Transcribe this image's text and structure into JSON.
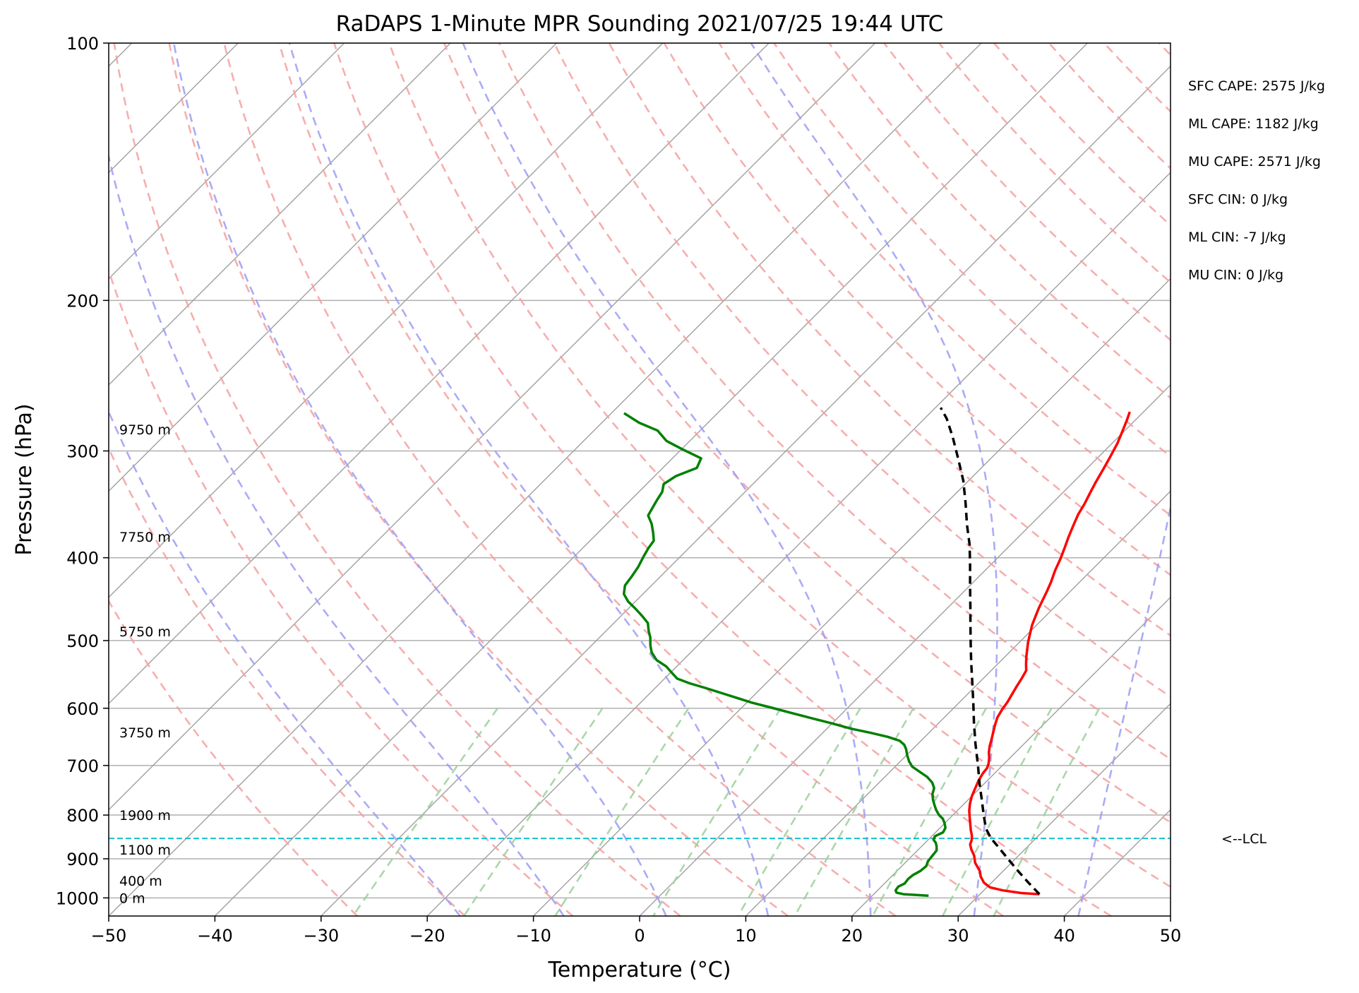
{
  "chart_data": {
    "type": "line",
    "title": "RaDAPS 1-Minute MPR Sounding 2021/07/25 19:44 UTC",
    "xlabel": "Temperature (°C)",
    "ylabel": "Pressure (hPa)",
    "xlim": [
      -50,
      50
    ],
    "ylim": [
      1050,
      100
    ],
    "y_scale": "log",
    "skew_t": true,
    "grid": true,
    "x_ticks": [
      -50,
      -40,
      -30,
      -20,
      -10,
      0,
      10,
      20,
      30,
      40,
      50
    ],
    "x_tick_labels": [
      "−50",
      "−40",
      "−30",
      "−20",
      "−10",
      "0",
      "10",
      "20",
      "30",
      "40",
      "50"
    ],
    "y_ticks": [
      100,
      200,
      300,
      400,
      500,
      600,
      700,
      800,
      900,
      1000
    ],
    "y_tick_labels": [
      "100",
      "200",
      "300",
      "400",
      "500",
      "600",
      "700",
      "800",
      "900",
      "1000"
    ],
    "series": [
      {
        "color": "#ff0000",
        "points": [
          [
            35.6,
            990
          ],
          [
            33.8,
            987
          ],
          [
            31.8,
            980
          ],
          [
            30.3,
            972
          ],
          [
            29.3,
            960
          ],
          [
            28.4,
            944
          ],
          [
            27.8,
            930
          ],
          [
            26.6,
            910
          ],
          [
            25.8,
            892
          ],
          [
            25.0,
            878
          ],
          [
            24.4,
            866
          ],
          [
            24.1,
            855
          ],
          [
            23.7,
            845
          ],
          [
            23.1,
            833
          ],
          [
            22.5,
            820
          ],
          [
            21.8,
            805
          ],
          [
            21.1,
            790
          ],
          [
            20.5,
            775
          ],
          [
            20.0,
            760
          ],
          [
            19.6,
            745
          ],
          [
            19.2,
            730
          ],
          [
            18.9,
            715
          ],
          [
            18.8,
            705
          ],
          [
            18.5,
            696
          ],
          [
            18.0,
            685
          ],
          [
            17.5,
            676
          ],
          [
            17.0,
            665
          ],
          [
            16.5,
            652
          ],
          [
            16.0,
            640
          ],
          [
            15.5,
            628
          ],
          [
            15.0,
            615
          ],
          [
            14.7,
            602
          ],
          [
            14.5,
            590
          ],
          [
            14.2,
            578
          ],
          [
            13.9,
            566
          ],
          [
            13.6,
            553
          ],
          [
            13.3,
            542
          ],
          [
            12.7,
            533
          ],
          [
            12.0,
            522
          ],
          [
            11.4,
            512
          ],
          [
            10.8,
            502
          ],
          [
            10.2,
            491
          ],
          [
            9.6,
            480
          ],
          [
            9.1,
            469
          ],
          [
            8.6,
            458
          ],
          [
            8.2,
            448
          ],
          [
            7.8,
            438
          ],
          [
            7.3,
            427
          ],
          [
            6.6,
            414
          ],
          [
            6.0,
            401
          ],
          [
            5.4,
            390
          ],
          [
            4.7,
            378
          ],
          [
            4.1,
            367
          ],
          [
            3.5,
            356
          ],
          [
            3.1,
            346
          ],
          [
            2.6,
            336
          ],
          [
            2.1,
            326
          ],
          [
            1.6,
            315
          ],
          [
            1.1,
            305
          ],
          [
            0.5,
            294
          ],
          [
            -0.2,
            284
          ],
          [
            -0.8,
            276
          ],
          [
            -1.3,
            270
          ]
        ]
      },
      {
        "color": "#008000",
        "points": [
          [
            25.3,
            994
          ],
          [
            24.0,
            992
          ],
          [
            22.8,
            990
          ],
          [
            22.0,
            986
          ],
          [
            21.7,
            980
          ],
          [
            21.6,
            970
          ],
          [
            21.9,
            962
          ],
          [
            21.8,
            950
          ],
          [
            21.9,
            940
          ],
          [
            22.2,
            930
          ],
          [
            22.3,
            918
          ],
          [
            22.0,
            906
          ],
          [
            21.9,
            893
          ],
          [
            21.8,
            880
          ],
          [
            21.4,
            870
          ],
          [
            21.0,
            862
          ],
          [
            20.5,
            855
          ],
          [
            20.3,
            847
          ],
          [
            20.7,
            838
          ],
          [
            20.5,
            828
          ],
          [
            20.0,
            818
          ],
          [
            19.4,
            808
          ],
          [
            18.7,
            800
          ],
          [
            18.0,
            790
          ],
          [
            17.4,
            780
          ],
          [
            16.7,
            768
          ],
          [
            16.1,
            756
          ],
          [
            15.7,
            744
          ],
          [
            15.0,
            733
          ],
          [
            14.0,
            722
          ],
          [
            12.8,
            712
          ],
          [
            11.6,
            702
          ],
          [
            10.8,
            692
          ],
          [
            10.0,
            680
          ],
          [
            9.4,
            670
          ],
          [
            8.8,
            662
          ],
          [
            8.0,
            655
          ],
          [
            6.5,
            648
          ],
          [
            4.5,
            641
          ],
          [
            2.3,
            634
          ],
          [
            0.0,
            625
          ],
          [
            -2.5,
            616
          ],
          [
            -5.0,
            607
          ],
          [
            -7.2,
            599
          ],
          [
            -9.5,
            591
          ],
          [
            -11.5,
            583
          ],
          [
            -13.5,
            575
          ],
          [
            -15.3,
            568
          ],
          [
            -17.2,
            561
          ],
          [
            -18.8,
            554
          ],
          [
            -19.9,
            545
          ],
          [
            -21.0,
            536
          ],
          [
            -22.5,
            527
          ],
          [
            -23.7,
            516
          ],
          [
            -24.5,
            506
          ],
          [
            -25.2,
            496
          ],
          [
            -26.0,
            487
          ],
          [
            -26.8,
            477
          ],
          [
            -28.0,
            468
          ],
          [
            -29.3,
            459
          ],
          [
            -30.7,
            450
          ],
          [
            -31.8,
            441
          ],
          [
            -32.5,
            431
          ],
          [
            -32.7,
            421
          ],
          [
            -33.0,
            410
          ],
          [
            -33.5,
            398
          ],
          [
            -33.8,
            390
          ],
          [
            -34.0,
            382
          ],
          [
            -34.8,
            374
          ],
          [
            -35.8,
            365
          ],
          [
            -36.9,
            357
          ],
          [
            -37.2,
            350
          ],
          [
            -37.5,
            343
          ],
          [
            -37.8,
            335
          ],
          [
            -38.4,
            328
          ],
          [
            -38.0,
            321
          ],
          [
            -36.8,
            314
          ],
          [
            -37.3,
            306
          ],
          [
            -39.8,
            299
          ],
          [
            -42.2,
            292
          ],
          [
            -44.0,
            284
          ],
          [
            -46.5,
            278
          ],
          [
            -48.8,
            271
          ]
        ]
      },
      {
        "name": "",
        "color": "#000000",
        "dashed": true,
        "points": [
          [
            35.6,
            990
          ],
          [
            33.5,
            960
          ],
          [
            31.4,
            930
          ],
          [
            29.3,
            900
          ],
          [
            27.3,
            872
          ],
          [
            25.8,
            852
          ],
          [
            24.4,
            830
          ],
          [
            22.9,
            800
          ],
          [
            21.4,
            770
          ],
          [
            19.6,
            736
          ],
          [
            17.7,
            700
          ],
          [
            15.4,
            660
          ],
          [
            13.3,
            624
          ],
          [
            11.4,
            592
          ],
          [
            9.3,
            559
          ],
          [
            7.4,
            531
          ],
          [
            5.6,
            505
          ],
          [
            3.8,
            480
          ],
          [
            2.0,
            456
          ],
          [
            0.0,
            431
          ],
          [
            -2.0,
            407
          ],
          [
            -3.9,
            386
          ],
          [
            -6.0,
            366
          ],
          [
            -8.2,
            345
          ],
          [
            -10.5,
            325
          ],
          [
            -13.1,
            306
          ],
          [
            -15.6,
            289
          ],
          [
            -17.9,
            275
          ],
          [
            -19.5,
            267
          ]
        ]
      }
    ],
    "lcl_hpa": 852,
    "lcl_label": "<--LCL",
    "height_labels": [
      {
        "text": "0 m",
        "p": 1000
      },
      {
        "text": "400 m",
        "p": 955
      },
      {
        "text": "1100 m",
        "p": 878
      },
      {
        "text": "1900 m",
        "p": 800
      },
      {
        "text": "3750 m",
        "p": 640
      },
      {
        "text": "5750 m",
        "p": 488
      },
      {
        "text": "7750 m",
        "p": 378
      },
      {
        "text": "9750 m",
        "p": 283
      }
    ],
    "annotations": [
      "SFC CAPE: 2575 J/kg",
      "ML CAPE: 1182 J/kg",
      "MU CAPE: 2571 J/kg",
      "SFC CIN: 0 J/kg",
      "ML CIN: -7 J/kg",
      "MU CIN: 0 J/kg"
    ],
    "dry_adiabat_thetas_c": [
      -30,
      -20,
      -10,
      0,
      10,
      20,
      30,
      40,
      50,
      60,
      70,
      80,
      90,
      100,
      110,
      120,
      130,
      140,
      150,
      160,
      170,
      180,
      190,
      200
    ],
    "moist_adiabat_t0_c": [
      -20,
      -10,
      0,
      10,
      20,
      30,
      40,
      50
    ],
    "mixing_ratio_lines_gkg": [
      0.4,
      1,
      2,
      4,
      7,
      10,
      16,
      24,
      32
    ],
    "colors": {
      "temperature": "#ff0000",
      "dewpoint": "#008000",
      "parcel": "#000000",
      "lcl": "#17becf",
      "dry_adiabat": "#f4a0a0",
      "moist_adiabat": "#9c9cf5",
      "mixing_ratio": "#9bd09b",
      "isotherm": "#a0a0a0",
      "grid": "#b0b0b0"
    }
  }
}
